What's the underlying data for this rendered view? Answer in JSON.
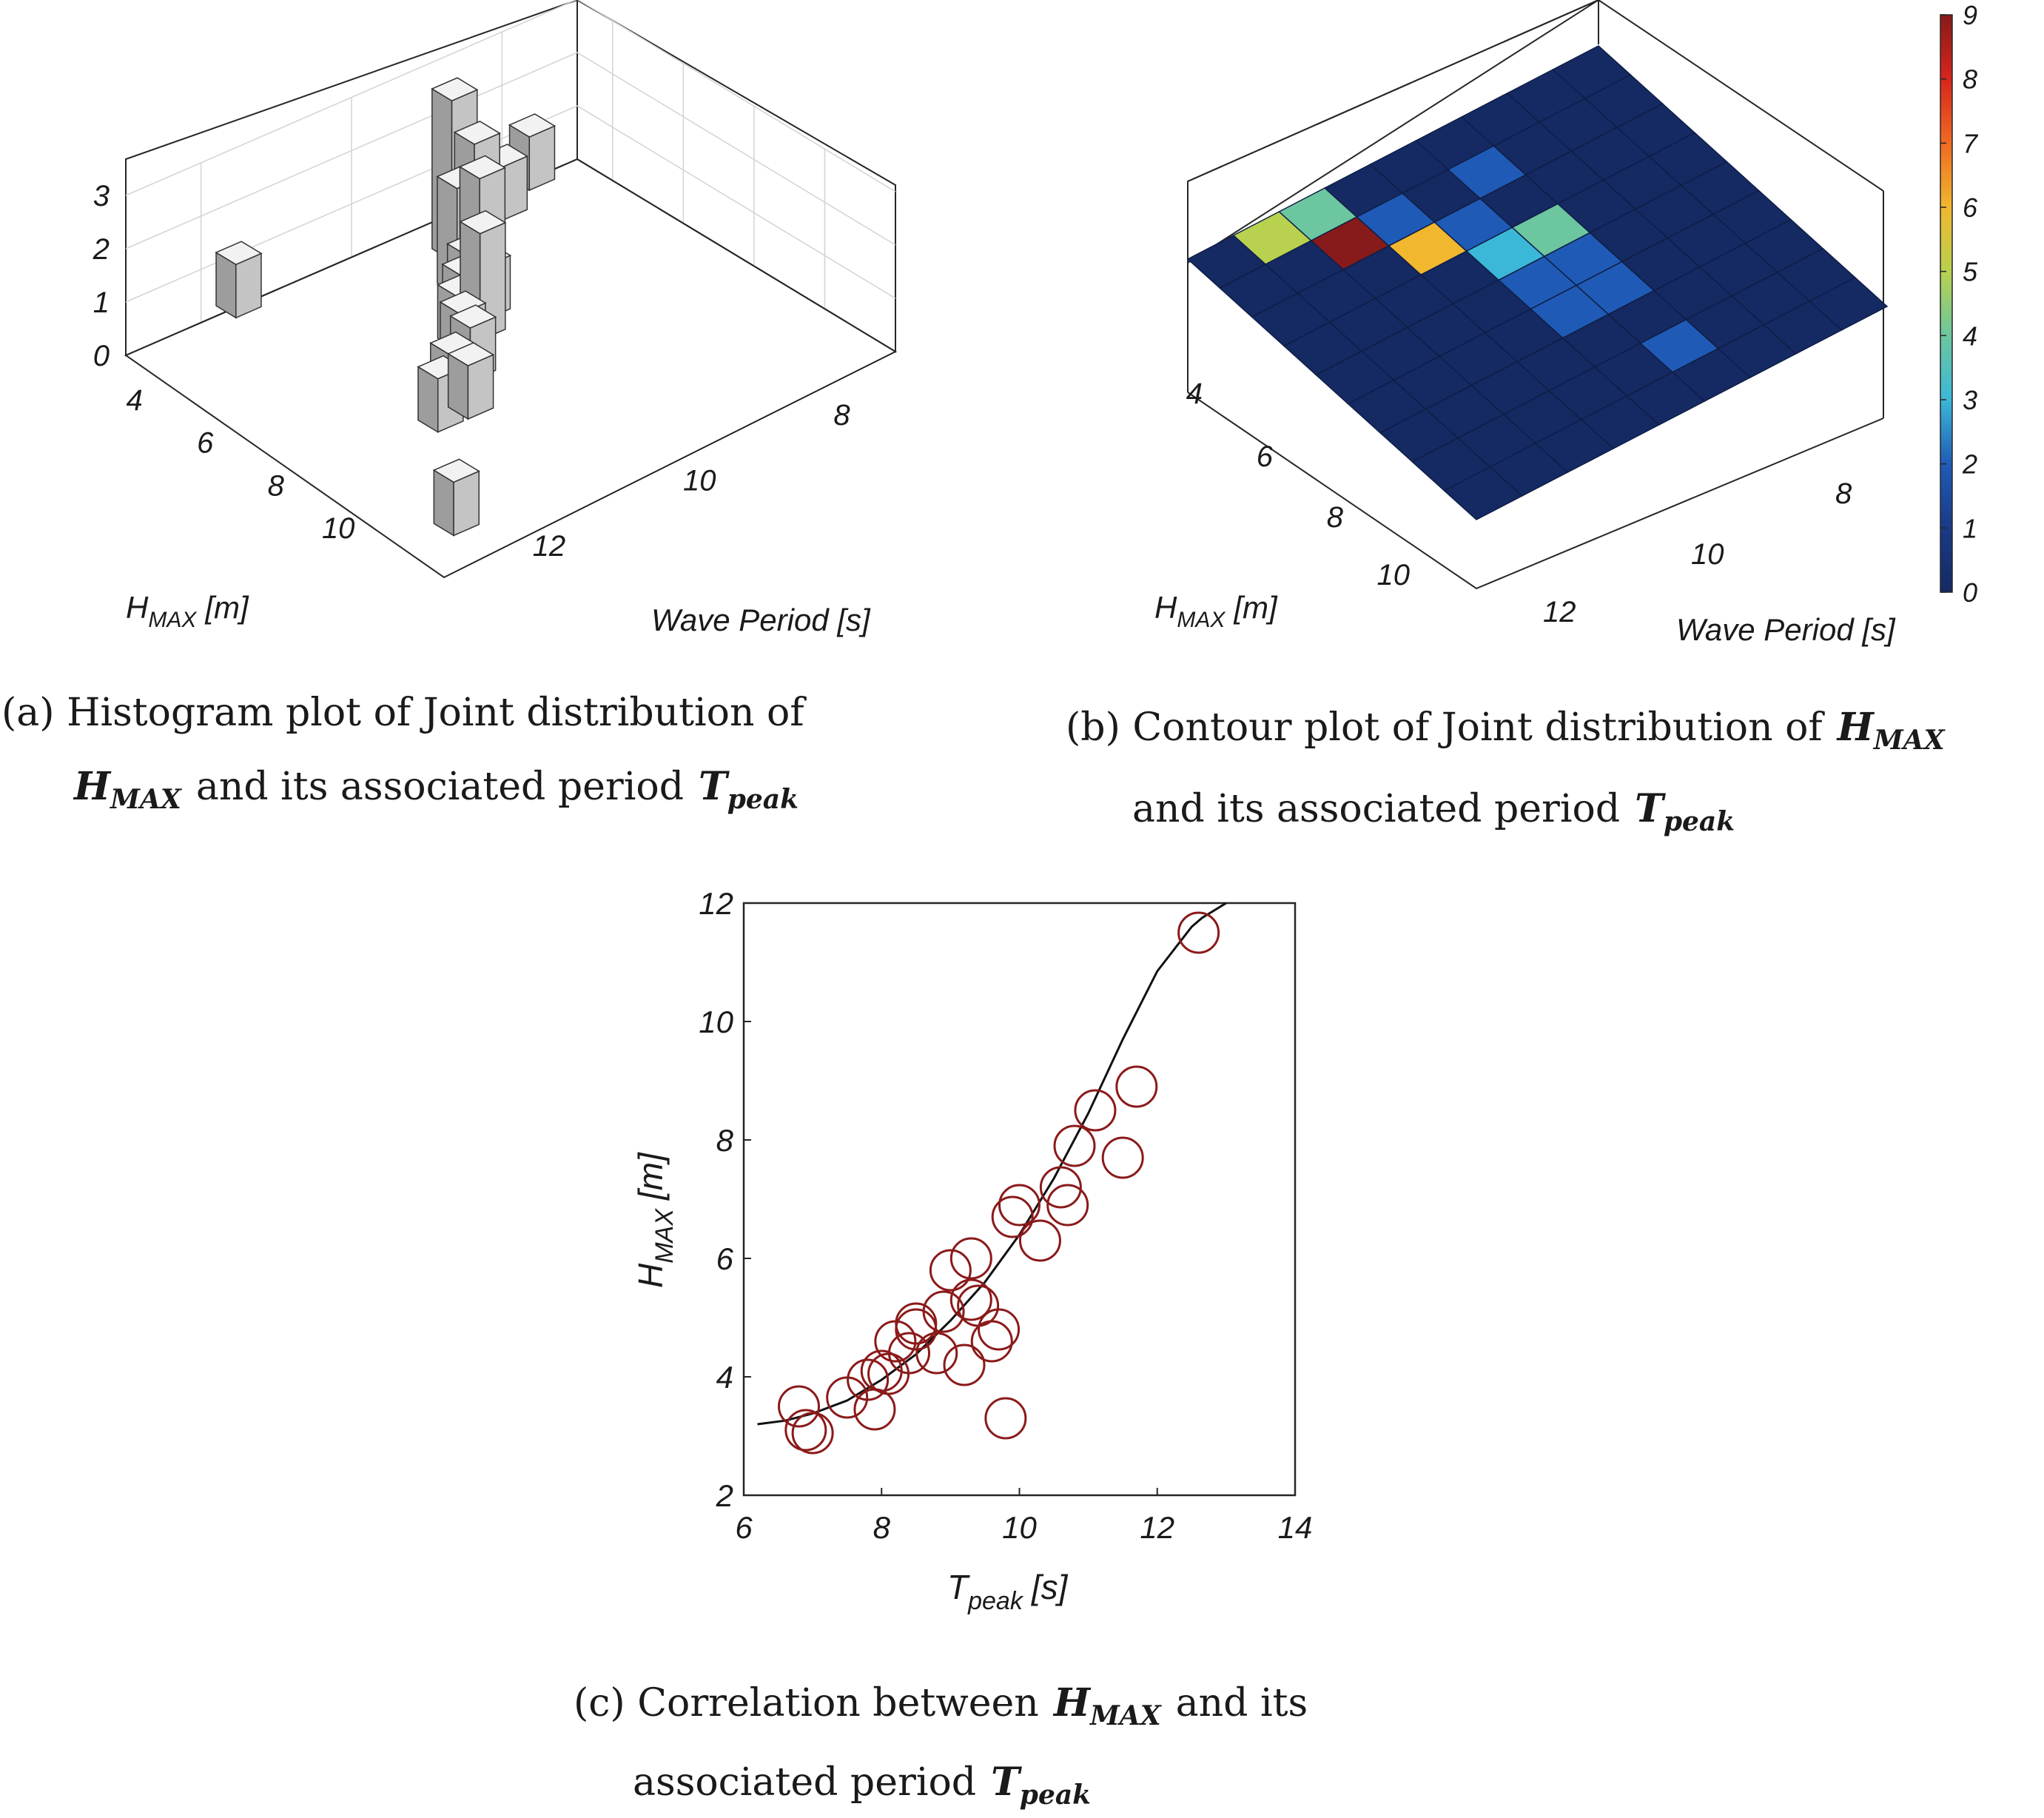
{
  "colors": {
    "bar_face": "#c4c4c4",
    "bar_side": "#9d9d9d",
    "bar_top": "#f2f2f2",
    "marker": "#8b1a1a",
    "fit_line": "#111111",
    "grid": "#d3d3d3",
    "axis": "#262626"
  },
  "captions": {
    "a": {
      "line1": "(a) Histogram plot of Joint distribution of",
      "sym1": "H",
      "sub1": "MAX",
      "mid": "and its associated period",
      "sym2": "T",
      "sub2": "peak"
    },
    "b": {
      "line1a": "(b) Contour plot of Joint distribution of",
      "sym1": "H",
      "sub1": "MAX",
      "line2a": "and its associated period",
      "sym2": "T",
      "sub2": "peak"
    },
    "c": {
      "line1a": "(c) Correlation between",
      "sym1": "H",
      "sub1": "MAX",
      "line1b": "and its",
      "line2a": "associated period",
      "sym2": "T",
      "sub2": "peak"
    }
  },
  "chart_data": [
    {
      "type": "bar3d",
      "panel": "a",
      "zlim": [
        0,
        3
      ],
      "zticks": [
        "0",
        "1",
        "2",
        "3"
      ],
      "hticks": [
        "4",
        "6",
        "8",
        "10"
      ],
      "tticks": [
        "8",
        "10",
        "12"
      ],
      "xlabel_sym": "H",
      "xlabel_sub": "MAX",
      "xlabel_unit": "[m]",
      "ylabel": "Wave Period [s]",
      "bars": [
        {
          "h": 3.0,
          "t": 7.6,
          "v": 1
        },
        {
          "h": 3.5,
          "t": 8.2,
          "v": 1
        },
        {
          "h": 3.5,
          "t": 8.5,
          "v": 1
        },
        {
          "h": 3.5,
          "t": 8.8,
          "v": 1
        },
        {
          "h": 4.0,
          "t": 8.8,
          "v": 2
        },
        {
          "h": 4.0,
          "t": 9.1,
          "v": 3
        },
        {
          "h": 4.5,
          "t": 9.2,
          "v": 1
        },
        {
          "h": 5.0,
          "t": 9.2,
          "v": 2
        },
        {
          "h": 5.0,
          "t": 9.5,
          "v": 2
        },
        {
          "h": 5.5,
          "t": 9.6,
          "v": 1
        },
        {
          "h": 6.0,
          "t": 9.6,
          "v": 1
        },
        {
          "h": 6.0,
          "t": 9.9,
          "v": 1
        },
        {
          "h": 6.5,
          "t": 9.9,
          "v": 2
        },
        {
          "h": 6.5,
          "t": 10.2,
          "v": 1
        },
        {
          "h": 7.0,
          "t": 10.4,
          "v": 1
        },
        {
          "h": 7.5,
          "t": 10.5,
          "v": 1
        },
        {
          "h": 8.0,
          "t": 11.0,
          "v": 1
        },
        {
          "h": 8.5,
          "t": 11.0,
          "v": 1
        },
        {
          "h": 8.5,
          "t": 11.4,
          "v": 1
        },
        {
          "h": 3.0,
          "t": 11.5,
          "v": 1
        },
        {
          "h": 11.5,
          "t": 12.6,
          "v": 1
        }
      ]
    },
    {
      "type": "heatmap",
      "panel": "b",
      "clim": [
        0,
        9
      ],
      "colorbar_ticks": [
        "0",
        "1",
        "2",
        "3",
        "4",
        "5",
        "6",
        "7",
        "8",
        "9"
      ],
      "hticks": [
        "4",
        "6",
        "8",
        "10"
      ],
      "tticks": [
        "8",
        "10",
        "12"
      ],
      "xlabel_sym": "H",
      "xlabel_sub": "MAX",
      "xlabel_unit": "[m]",
      "ylabel": "Wave Period [s]",
      "grid": [
        [
          0,
          0,
          0,
          0,
          0,
          0,
          4,
          5,
          0
        ],
        [
          0,
          0,
          0,
          2,
          0,
          2,
          9,
          0,
          0
        ],
        [
          0,
          0,
          0,
          0,
          2,
          6,
          0,
          0,
          0
        ],
        [
          0,
          0,
          0,
          4,
          3,
          0,
          0,
          0,
          0
        ],
        [
          0,
          0,
          0,
          2,
          2,
          0,
          0,
          0,
          0
        ],
        [
          0,
          0,
          0,
          2,
          2,
          0,
          0,
          0,
          0
        ],
        [
          0,
          0,
          0,
          0,
          0,
          0,
          0,
          0,
          0
        ],
        [
          0,
          0,
          0,
          2,
          0,
          0,
          0,
          0,
          0
        ],
        [
          0,
          0,
          0,
          0,
          0,
          0,
          0,
          0,
          0
        ]
      ]
    },
    {
      "type": "scatter",
      "panel": "c",
      "xlim": [
        6,
        14
      ],
      "ylim": [
        2,
        12
      ],
      "xticks": [
        "6",
        "8",
        "10",
        "12",
        "14"
      ],
      "yticks": [
        "2",
        "4",
        "6",
        "8",
        "10",
        "12"
      ],
      "xlabel_sym": "T",
      "xlabel_sub": "peak",
      "xlabel_unit": "[s]",
      "ylabel_sym": "H",
      "ylabel_sub": "MAX",
      "ylabel_unit": "[m]",
      "points": [
        [
          6.8,
          3.5
        ],
        [
          6.9,
          3.1
        ],
        [
          7.0,
          3.05
        ],
        [
          7.5,
          3.65
        ],
        [
          7.9,
          3.45
        ],
        [
          7.8,
          3.95
        ],
        [
          8.0,
          4.1
        ],
        [
          8.1,
          4.05
        ],
        [
          8.2,
          4.6
        ],
        [
          8.4,
          4.4
        ],
        [
          8.5,
          4.9
        ],
        [
          8.5,
          4.8
        ],
        [
          8.8,
          4.4
        ],
        [
          8.9,
          5.1
        ],
        [
          9.0,
          5.8
        ],
        [
          9.2,
          4.2
        ],
        [
          9.3,
          6.0
        ],
        [
          9.3,
          5.3
        ],
        [
          9.4,
          5.2
        ],
        [
          9.6,
          4.6
        ],
        [
          9.7,
          4.8
        ],
        [
          9.8,
          3.3
        ],
        [
          9.9,
          6.7
        ],
        [
          10.0,
          6.9
        ],
        [
          10.3,
          6.3
        ],
        [
          10.6,
          7.2
        ],
        [
          10.7,
          6.9
        ],
        [
          10.8,
          7.9
        ],
        [
          11.1,
          8.5
        ],
        [
          11.5,
          7.7
        ],
        [
          11.7,
          8.9
        ],
        [
          12.6,
          11.5
        ]
      ],
      "fit_curve": [
        [
          6.2,
          3.2
        ],
        [
          6.6,
          3.26
        ],
        [
          7.0,
          3.38
        ],
        [
          7.5,
          3.6
        ],
        [
          8.0,
          3.95
        ],
        [
          8.5,
          4.38
        ],
        [
          9.0,
          4.95
        ],
        [
          9.5,
          5.6
        ],
        [
          10.0,
          6.4
        ],
        [
          10.5,
          7.35
        ],
        [
          11.0,
          8.45
        ],
        [
          11.5,
          9.7
        ],
        [
          12.0,
          10.85
        ],
        [
          12.5,
          11.6
        ],
        [
          12.65,
          11.75
        ],
        [
          13.0,
          12.0
        ]
      ]
    }
  ]
}
